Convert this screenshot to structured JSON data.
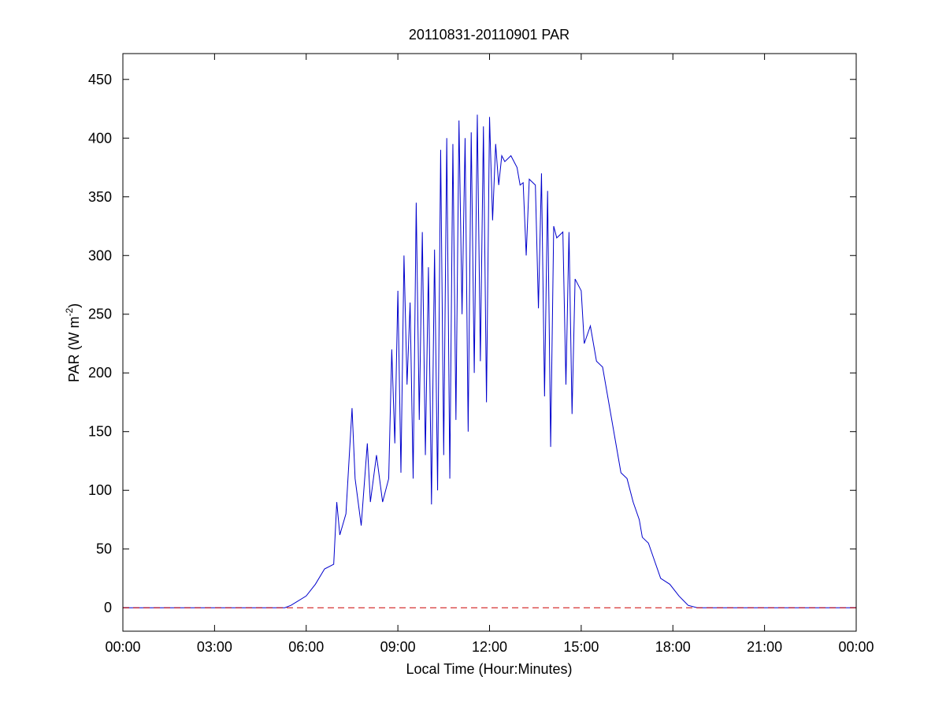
{
  "chart_data": {
    "type": "line",
    "title": "20110831-20110901 PAR",
    "xlabel": "Local Time (Hour:Minutes)",
    "ylabel": {
      "text": "PAR (W m",
      "superscript": "-2",
      "suffix": ")"
    },
    "xlim": [
      0,
      24
    ],
    "xticks": [
      {
        "value": 0,
        "label": "00:00"
      },
      {
        "value": 3,
        "label": "03:00"
      },
      {
        "value": 6,
        "label": "06:00"
      },
      {
        "value": 9,
        "label": "09:00"
      },
      {
        "value": 12,
        "label": "12:00"
      },
      {
        "value": 15,
        "label": "15:00"
      },
      {
        "value": 18,
        "label": "18:00"
      },
      {
        "value": 21,
        "label": "21:00"
      },
      {
        "value": 24,
        "label": "00:00"
      }
    ],
    "ylim": [
      -20,
      472
    ],
    "yticks": [
      0,
      50,
      100,
      150,
      200,
      250,
      300,
      350,
      400,
      450
    ],
    "grid": false,
    "series": [
      {
        "color": "#0000cc",
        "style": "solid",
        "x": [
          0,
          5.3,
          5.5,
          6.0,
          6.3,
          6.6,
          6.9,
          7.0,
          7.1,
          7.3,
          7.5,
          7.6,
          7.8,
          8.0,
          8.1,
          8.3,
          8.5,
          8.7,
          8.8,
          8.9,
          9.0,
          9.1,
          9.2,
          9.3,
          9.4,
          9.5,
          9.6,
          9.7,
          9.8,
          9.9,
          10.0,
          10.1,
          10.2,
          10.3,
          10.4,
          10.5,
          10.6,
          10.7,
          10.8,
          10.9,
          11.0,
          11.1,
          11.2,
          11.3,
          11.4,
          11.5,
          11.6,
          11.7,
          11.8,
          11.9,
          12.0,
          12.1,
          12.2,
          12.3,
          12.4,
          12.5,
          12.7,
          12.9,
          13.0,
          13.1,
          13.2,
          13.3,
          13.5,
          13.6,
          13.7,
          13.8,
          13.9,
          14.0,
          14.1,
          14.2,
          14.4,
          14.5,
          14.6,
          14.7,
          14.8,
          15.0,
          15.1,
          15.3,
          15.5,
          15.7,
          15.9,
          16.0,
          16.2,
          16.3,
          16.5,
          16.7,
          16.9,
          17.0,
          17.2,
          17.4,
          17.6,
          17.9,
          18.2,
          18.5,
          18.8,
          24
        ],
        "values": [
          0,
          0,
          2,
          10,
          20,
          33,
          37,
          90,
          62,
          80,
          170,
          110,
          70,
          140,
          90,
          130,
          90,
          110,
          220,
          140,
          270,
          115,
          300,
          190,
          260,
          110,
          345,
          160,
          320,
          130,
          290,
          88,
          305,
          100,
          390,
          130,
          400,
          110,
          395,
          160,
          415,
          250,
          400,
          150,
          405,
          200,
          420,
          210,
          410,
          175,
          418,
          330,
          395,
          360,
          385,
          380,
          385,
          375,
          360,
          362,
          300,
          365,
          360,
          255,
          370,
          180,
          355,
          137,
          325,
          315,
          320,
          190,
          320,
          165,
          280,
          270,
          225,
          240,
          210,
          205,
          175,
          160,
          130,
          115,
          110,
          90,
          75,
          60,
          55,
          40,
          25,
          20,
          10,
          2,
          0,
          0
        ]
      },
      {
        "color": "#cc0000",
        "style": "dashed",
        "x": [
          0,
          24
        ],
        "values": [
          0,
          0
        ]
      }
    ]
  }
}
